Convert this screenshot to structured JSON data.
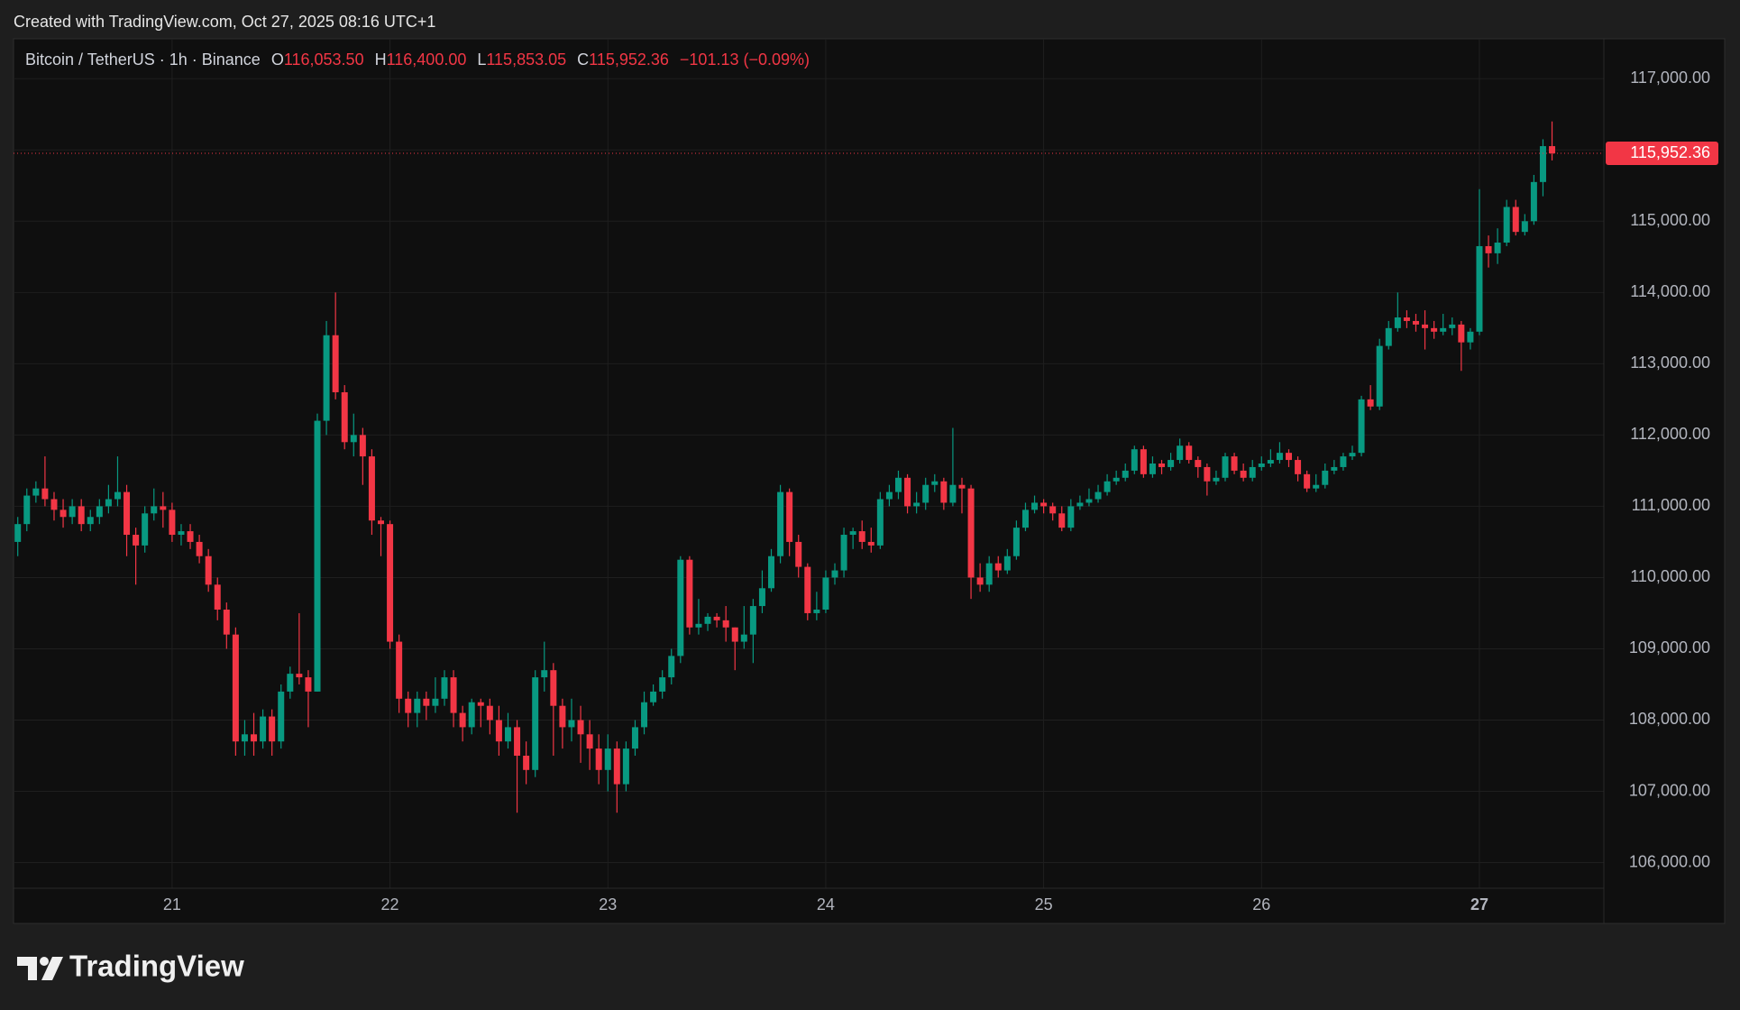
{
  "chart_data": {
    "type": "candlestick",
    "caption": "Created with TradingView.com, Oct 27, 2025 08:16 UTC+1",
    "brand": "TradingView",
    "header": {
      "symbol": "Bitcoin / TetherUS · 1h · Binance",
      "ohlc": [
        {
          "prefix": "O",
          "value": "116,053.50"
        },
        {
          "prefix": "H",
          "value": "116,400.00"
        },
        {
          "prefix": "L",
          "value": "115,853.05"
        },
        {
          "prefix": "C",
          "value": "115,952.36"
        }
      ],
      "change": "−101.13 (−0.09%)"
    },
    "up_color": "#089981",
    "down_color": "#f23645",
    "grid": true,
    "ylim": [
      105640,
      117560
    ],
    "yticks": [
      {
        "value": 106000,
        "label": "106,000.00"
      },
      {
        "value": 107000,
        "label": "107,000.00"
      },
      {
        "value": 108000,
        "label": "108,000.00"
      },
      {
        "value": 109000,
        "label": "109,000.00"
      },
      {
        "value": 110000,
        "label": "110,000.00"
      },
      {
        "value": 111000,
        "label": "111,000.00"
      },
      {
        "value": 112000,
        "label": "112,000.00"
      },
      {
        "value": 113000,
        "label": "113,000.00"
      },
      {
        "value": 114000,
        "label": "114,000.00"
      },
      {
        "value": 115000,
        "label": "115,000.00"
      },
      {
        "value": 116000,
        "label": "116,000.00"
      },
      {
        "value": 117000,
        "label": "117,000.00"
      }
    ],
    "price_line": {
      "value": 115952.36,
      "label": "115,952.36",
      "color": "#f23645"
    },
    "categories": [
      null,
      null,
      null,
      null,
      null,
      null,
      null,
      null,
      null,
      null,
      null,
      null,
      null,
      null,
      null,
      null,
      null,
      "21",
      null,
      null,
      null,
      null,
      null,
      null,
      null,
      null,
      null,
      null,
      null,
      null,
      null,
      null,
      null,
      null,
      null,
      null,
      null,
      null,
      null,
      null,
      null,
      "22",
      null,
      null,
      null,
      null,
      null,
      null,
      null,
      null,
      null,
      null,
      null,
      null,
      null,
      null,
      null,
      null,
      null,
      null,
      null,
      null,
      null,
      null,
      null,
      "23",
      null,
      null,
      null,
      null,
      null,
      null,
      null,
      null,
      null,
      null,
      null,
      null,
      null,
      null,
      null,
      null,
      null,
      null,
      null,
      null,
      null,
      null,
      null,
      "24",
      null,
      null,
      null,
      null,
      null,
      null,
      null,
      null,
      null,
      null,
      null,
      null,
      null,
      null,
      null,
      null,
      null,
      null,
      null,
      null,
      null,
      null,
      null,
      "25",
      null,
      null,
      null,
      null,
      null,
      null,
      null,
      null,
      null,
      null,
      null,
      null,
      null,
      null,
      null,
      null,
      null,
      null,
      null,
      null,
      null,
      null,
      null,
      "26",
      null,
      null,
      null,
      null,
      null,
      null,
      null,
      null,
      null,
      null,
      null,
      null,
      null,
      null,
      null,
      null,
      null,
      null,
      null,
      null,
      null,
      null,
      null,
      "27",
      null,
      null,
      null,
      null,
      null,
      null,
      null,
      null
    ],
    "candles": [
      [
        110500,
        110850,
        110300,
        110750
      ],
      [
        110750,
        111250,
        110650,
        111150
      ],
      [
        111150,
        111350,
        111050,
        111250
      ],
      [
        111250,
        111700,
        111000,
        111100
      ],
      [
        111100,
        111200,
        110800,
        110950
      ],
      [
        110950,
        111100,
        110700,
        110850
      ],
      [
        110850,
        111100,
        110750,
        111000
      ],
      [
        111000,
        111100,
        110650,
        110750
      ],
      [
        110750,
        110950,
        110650,
        110850
      ],
      [
        110850,
        111100,
        110750,
        111000
      ],
      [
        111000,
        111300,
        110900,
        111100
      ],
      [
        111100,
        111700,
        111000,
        111200
      ],
      [
        111200,
        111300,
        110300,
        110600
      ],
      [
        110600,
        110700,
        109900,
        110450
      ],
      [
        110450,
        111000,
        110350,
        110900
      ],
      [
        110900,
        111250,
        110800,
        111000
      ],
      [
        111000,
        111200,
        110700,
        110950
      ],
      [
        110950,
        111050,
        110500,
        110600
      ],
      [
        110600,
        110750,
        110450,
        110650
      ],
      [
        110650,
        110750,
        110400,
        110500
      ],
      [
        110500,
        110600,
        110200,
        110300
      ],
      [
        110300,
        110400,
        109800,
        109900
      ],
      [
        109900,
        110000,
        109400,
        109550
      ],
      [
        109550,
        109650,
        109000,
        109200
      ],
      [
        109200,
        109300,
        107500,
        107700
      ],
      [
        107700,
        108000,
        107500,
        107800
      ],
      [
        107800,
        108100,
        107500,
        107700
      ],
      [
        107700,
        108150,
        107600,
        108050
      ],
      [
        108050,
        108150,
        107500,
        107700
      ],
      [
        107700,
        108500,
        107600,
        108400
      ],
      [
        108400,
        108750,
        108300,
        108650
      ],
      [
        108650,
        109500,
        108500,
        108600
      ],
      [
        108600,
        108700,
        107900,
        108400
      ],
      [
        108400,
        112300,
        108400,
        112200
      ],
      [
        112200,
        113600,
        112000,
        113400
      ],
      [
        113400,
        114000,
        112500,
        112600
      ],
      [
        112600,
        112700,
        111800,
        111900
      ],
      [
        111900,
        112300,
        111700,
        112000
      ],
      [
        112000,
        112100,
        111300,
        111700
      ],
      [
        111700,
        111800,
        110600,
        110800
      ],
      [
        110800,
        110850,
        110300,
        110750
      ],
      [
        110750,
        110800,
        109000,
        109100
      ],
      [
        109100,
        109200,
        108100,
        108300
      ],
      [
        108300,
        108400,
        107900,
        108100
      ],
      [
        108100,
        108400,
        107900,
        108300
      ],
      [
        108300,
        108400,
        108000,
        108200
      ],
      [
        108200,
        108600,
        108100,
        108300
      ],
      [
        108300,
        108700,
        108200,
        108600
      ],
      [
        108600,
        108700,
        107900,
        108100
      ],
      [
        108100,
        108200,
        107700,
        107900
      ],
      [
        107900,
        108300,
        107800,
        108250
      ],
      [
        108250,
        108300,
        107900,
        108200
      ],
      [
        108200,
        108300,
        107800,
        108000
      ],
      [
        108000,
        108200,
        107500,
        107700
      ],
      [
        107700,
        108100,
        107600,
        107900
      ],
      [
        107900,
        108000,
        106700,
        107500
      ],
      [
        107500,
        107700,
        107100,
        107300
      ],
      [
        107300,
        108700,
        107200,
        108600
      ],
      [
        108600,
        109100,
        108400,
        108700
      ],
      [
        108700,
        108800,
        107500,
        108200
      ],
      [
        108200,
        108300,
        107600,
        107900
      ],
      [
        107900,
        108300,
        107700,
        108000
      ],
      [
        108000,
        108200,
        107400,
        107800
      ],
      [
        107800,
        108000,
        107300,
        107600
      ],
      [
        107600,
        107800,
        107100,
        107300
      ],
      [
        107300,
        107800,
        107000,
        107600
      ],
      [
        107600,
        107700,
        106700,
        107100
      ],
      [
        107100,
        107700,
        107000,
        107600
      ],
      [
        107600,
        108000,
        107500,
        107900
      ],
      [
        107900,
        108400,
        107800,
        108250
      ],
      [
        108250,
        108500,
        108200,
        108400
      ],
      [
        108400,
        108700,
        108300,
        108600
      ],
      [
        108600,
        109000,
        108500,
        108900
      ],
      [
        108900,
        110300,
        108800,
        110250
      ],
      [
        110250,
        110300,
        109200,
        109300
      ],
      [
        109300,
        109700,
        109200,
        109350
      ],
      [
        109350,
        109500,
        109250,
        109450
      ],
      [
        109450,
        109500,
        109300,
        109400
      ],
      [
        109400,
        109600,
        109100,
        109300
      ],
      [
        109300,
        109300,
        108700,
        109100
      ],
      [
        109100,
        109600,
        109000,
        109200
      ],
      [
        109200,
        109700,
        108800,
        109600
      ],
      [
        109600,
        110100,
        109500,
        109850
      ],
      [
        109850,
        110400,
        109800,
        110300
      ],
      [
        110300,
        111300,
        110200,
        111200
      ],
      [
        111200,
        111250,
        110300,
        110500
      ],
      [
        110500,
        110600,
        110000,
        110150
      ],
      [
        110150,
        110200,
        109400,
        109500
      ],
      [
        109500,
        109800,
        109400,
        109550
      ],
      [
        109550,
        110100,
        109500,
        110000
      ],
      [
        110000,
        110200,
        109900,
        110100
      ],
      [
        110100,
        110700,
        110000,
        110600
      ],
      [
        110600,
        110700,
        110400,
        110650
      ],
      [
        110650,
        110800,
        110400,
        110500
      ],
      [
        110500,
        110700,
        110350,
        110450
      ],
      [
        110450,
        111200,
        110400,
        111100
      ],
      [
        111100,
        111300,
        111000,
        111200
      ],
      [
        111200,
        111500,
        111100,
        111400
      ],
      [
        111400,
        111450,
        110900,
        111000
      ],
      [
        111000,
        111200,
        110900,
        111050
      ],
      [
        111050,
        111400,
        110950,
        111300
      ],
      [
        111300,
        111450,
        111200,
        111350
      ],
      [
        111350,
        111400,
        110950,
        111050
      ],
      [
        111050,
        112100,
        111000,
        111300
      ],
      [
        111300,
        111400,
        110900,
        111250
      ],
      [
        111250,
        111300,
        109700,
        110000
      ],
      [
        110000,
        110200,
        109800,
        109900
      ],
      [
        109900,
        110300,
        109800,
        110200
      ],
      [
        110200,
        110300,
        110000,
        110100
      ],
      [
        110100,
        110400,
        110050,
        110300
      ],
      [
        110300,
        110800,
        110250,
        110700
      ],
      [
        110700,
        111050,
        110650,
        110950
      ],
      [
        110950,
        111150,
        110900,
        111050
      ],
      [
        111050,
        111100,
        110900,
        111000
      ],
      [
        111000,
        111050,
        110800,
        110900
      ],
      [
        110900,
        111000,
        110650,
        110700
      ],
      [
        110700,
        111100,
        110650,
        111000
      ],
      [
        111000,
        111150,
        110950,
        111050
      ],
      [
        111050,
        111250,
        111000,
        111100
      ],
      [
        111100,
        111300,
        111050,
        111200
      ],
      [
        111200,
        111450,
        111150,
        111350
      ],
      [
        111350,
        111500,
        111300,
        111400
      ],
      [
        111400,
        111600,
        111350,
        111500
      ],
      [
        111500,
        111850,
        111450,
        111800
      ],
      [
        111800,
        111850,
        111400,
        111450
      ],
      [
        111450,
        111700,
        111400,
        111600
      ],
      [
        111600,
        111650,
        111450,
        111550
      ],
      [
        111550,
        111750,
        111500,
        111650
      ],
      [
        111650,
        111950,
        111600,
        111850
      ],
      [
        111850,
        111900,
        111600,
        111650
      ],
      [
        111650,
        111700,
        111400,
        111550
      ],
      [
        111550,
        111600,
        111150,
        111350
      ],
      [
        111350,
        111500,
        111300,
        111400
      ],
      [
        111400,
        111750,
        111350,
        111700
      ],
      [
        111700,
        111750,
        111450,
        111500
      ],
      [
        111500,
        111600,
        111350,
        111400
      ],
      [
        111400,
        111650,
        111350,
        111550
      ],
      [
        111550,
        111700,
        111500,
        111600
      ],
      [
        111600,
        111800,
        111550,
        111650
      ],
      [
        111650,
        111900,
        111600,
        111750
      ],
      [
        111750,
        111800,
        111550,
        111650
      ],
      [
        111650,
        111700,
        111350,
        111450
      ],
      [
        111450,
        111500,
        111200,
        111250
      ],
      [
        111250,
        111450,
        111200,
        111300
      ],
      [
        111300,
        111600,
        111250,
        111500
      ],
      [
        111500,
        111650,
        111450,
        111550
      ],
      [
        111550,
        111750,
        111500,
        111700
      ],
      [
        111700,
        111850,
        111650,
        111750
      ],
      [
        111750,
        112550,
        111700,
        112500
      ],
      [
        112500,
        112700,
        112350,
        112400
      ],
      [
        112400,
        113350,
        112350,
        113250
      ],
      [
        113250,
        113600,
        113200,
        113500
      ],
      [
        113500,
        114000,
        113450,
        113650
      ],
      [
        113650,
        113750,
        113500,
        113600
      ],
      [
        113600,
        113700,
        113450,
        113550
      ],
      [
        113550,
        113750,
        113200,
        113500
      ],
      [
        113500,
        113600,
        113350,
        113450
      ],
      [
        113450,
        113700,
        113400,
        113500
      ],
      [
        113500,
        113650,
        113400,
        113550
      ],
      [
        113550,
        113600,
        112900,
        113300
      ],
      [
        113300,
        113500,
        113200,
        113450
      ],
      [
        113450,
        115450,
        113400,
        114650
      ],
      [
        114650,
        114800,
        114350,
        114550
      ],
      [
        114550,
        114900,
        114400,
        114700
      ],
      [
        114700,
        115300,
        114650,
        115200
      ],
      [
        115200,
        115300,
        114800,
        114850
      ],
      [
        114850,
        115100,
        114800,
        115000
      ],
      [
        115000,
        115650,
        114950,
        115550
      ],
      [
        115550,
        116150,
        115350,
        116053.5
      ],
      [
        116053.5,
        116400,
        115853.05,
        115952.36
      ]
    ]
  }
}
